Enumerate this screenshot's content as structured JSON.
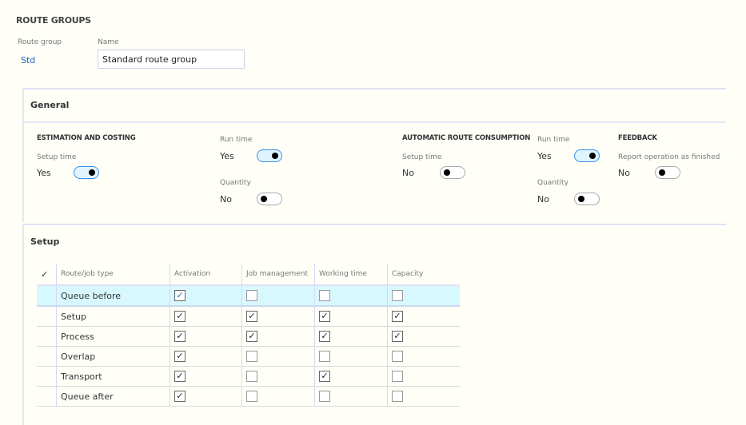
{
  "page_title": "ROUTE GROUPS",
  "header": {
    "route_group_label": "Route group",
    "route_group_value": "Std",
    "name_label": "Name",
    "name_value": "Standard route group"
  },
  "general": {
    "title": "General",
    "estimation": {
      "heading": "ESTIMATION AND COSTING",
      "setup_time": {
        "label": "Setup time",
        "value": "Yes",
        "on": true
      },
      "run_time": {
        "label": "Run time",
        "value": "Yes",
        "on": true
      },
      "quantity": {
        "label": "Quantity",
        "value": "No",
        "on": false
      }
    },
    "automatic": {
      "heading": "AUTOMATIC ROUTE CONSUMPTION",
      "setup_time": {
        "label": "Setup time",
        "value": "No",
        "on": false
      },
      "run_time": {
        "label": "Run time",
        "value": "Yes",
        "on": true
      },
      "quantity": {
        "label": "Quantity",
        "value": "No",
        "on": false
      }
    },
    "feedback": {
      "heading": "FEEDBACK",
      "report": {
        "label": "Report operation as finished",
        "value": "No",
        "on": false
      }
    }
  },
  "setup": {
    "title": "Setup",
    "select_all_icon": "checkmark-icon",
    "columns": [
      "Route/job type",
      "Activation",
      "Job management",
      "Working time",
      "Capacity"
    ],
    "rows": [
      {
        "type": "Queue before",
        "values": [
          true,
          false,
          false,
          false
        ],
        "selected": true
      },
      {
        "type": "Setup",
        "values": [
          true,
          true,
          true,
          true
        ]
      },
      {
        "type": "Process",
        "values": [
          true,
          true,
          true,
          true
        ]
      },
      {
        "type": "Overlap",
        "values": [
          true,
          false,
          false,
          false
        ]
      },
      {
        "type": "Transport",
        "values": [
          true,
          false,
          true,
          false
        ]
      },
      {
        "type": "Queue after",
        "values": [
          true,
          false,
          false,
          false
        ]
      }
    ]
  },
  "colors": {
    "accent": "#3a8ee6",
    "selected_row": "#d8f8ff",
    "link": "#2266cc"
  }
}
